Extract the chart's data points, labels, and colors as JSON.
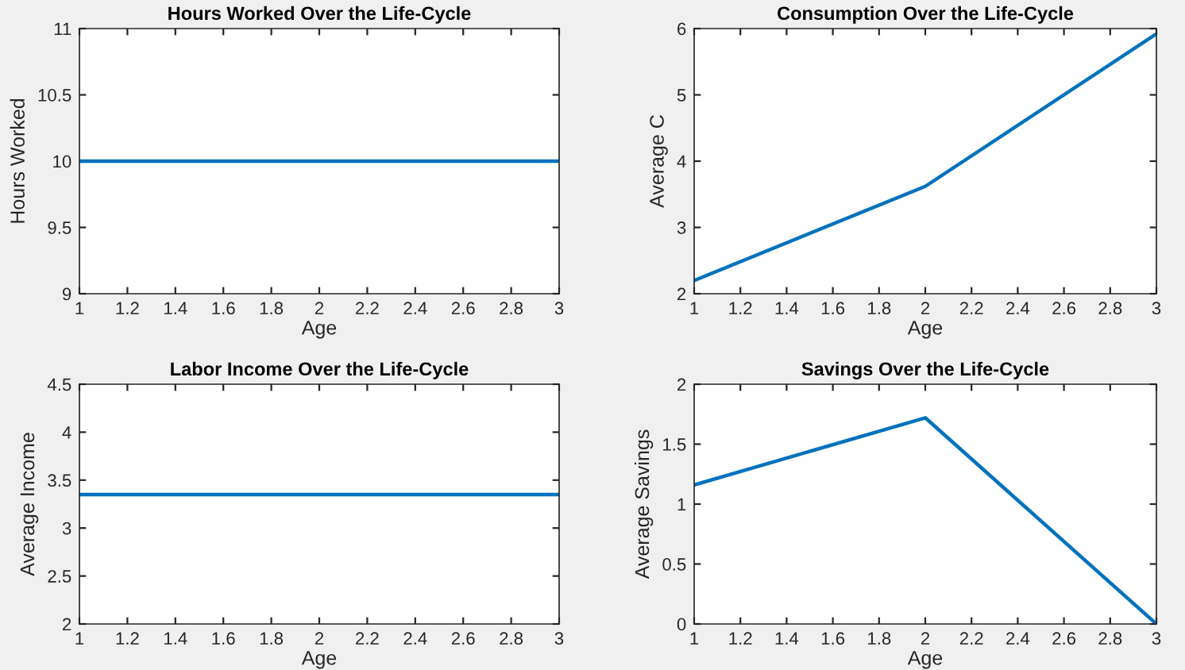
{
  "chart_data": [
    {
      "type": "line",
      "title": "Hours Worked Over the Life-Cycle",
      "xlabel": "Age",
      "ylabel": "Hours Worked",
      "x": [
        1,
        2,
        3
      ],
      "series": [
        {
          "color": "#0072bd",
          "values": [
            10,
            10,
            10
          ]
        }
      ],
      "xlim": [
        1,
        3
      ],
      "xticks": [
        1,
        1.2,
        1.4,
        1.6,
        1.8,
        2,
        2.2,
        2.4,
        2.6,
        2.8,
        3
      ],
      "ylim": [
        9,
        11
      ],
      "yticks": [
        9,
        9.5,
        10,
        10.5,
        11
      ],
      "grid": false,
      "marker": "none",
      "line_style": "solid"
    },
    {
      "type": "line",
      "title": "Consumption Over the Life-Cycle",
      "xlabel": "Age",
      "ylabel": "Average C",
      "x": [
        1,
        2,
        3
      ],
      "series": [
        {
          "color": "#0072bd",
          "values": [
            2.2,
            3.62,
            5.92
          ]
        }
      ],
      "xlim": [
        1,
        3
      ],
      "xticks": [
        1,
        1.2,
        1.4,
        1.6,
        1.8,
        2,
        2.2,
        2.4,
        2.6,
        2.8,
        3
      ],
      "ylim": [
        2,
        6
      ],
      "yticks": [
        2,
        3,
        4,
        5,
        6
      ],
      "grid": false,
      "marker": "none",
      "line_style": "solid"
    },
    {
      "type": "line",
      "title": "Labor Income Over the Life-Cycle",
      "xlabel": "Age",
      "ylabel": "Average Income",
      "x": [
        1,
        2,
        3
      ],
      "series": [
        {
          "color": "#0072bd",
          "values": [
            3.35,
            3.35,
            3.35
          ]
        }
      ],
      "xlim": [
        1,
        3
      ],
      "xticks": [
        1,
        1.2,
        1.4,
        1.6,
        1.8,
        2,
        2.2,
        2.4,
        2.6,
        2.8,
        3
      ],
      "ylim": [
        2,
        4.5
      ],
      "yticks": [
        2,
        2.5,
        3,
        3.5,
        4,
        4.5
      ],
      "grid": false,
      "marker": "none",
      "line_style": "solid"
    },
    {
      "type": "line",
      "title": "Savings Over the Life-Cycle",
      "xlabel": "Age",
      "ylabel": "Average Savings",
      "x": [
        1,
        2,
        3
      ],
      "series": [
        {
          "color": "#0072bd",
          "values": [
            1.16,
            1.72,
            0
          ]
        }
      ],
      "xlim": [
        1,
        3
      ],
      "xticks": [
        1,
        1.2,
        1.4,
        1.6,
        1.8,
        2,
        2.2,
        2.4,
        2.6,
        2.8,
        3
      ],
      "ylim": [
        0,
        2
      ],
      "yticks": [
        0,
        0.5,
        1,
        1.5,
        2
      ],
      "grid": false,
      "marker": "none",
      "line_style": "solid"
    }
  ]
}
